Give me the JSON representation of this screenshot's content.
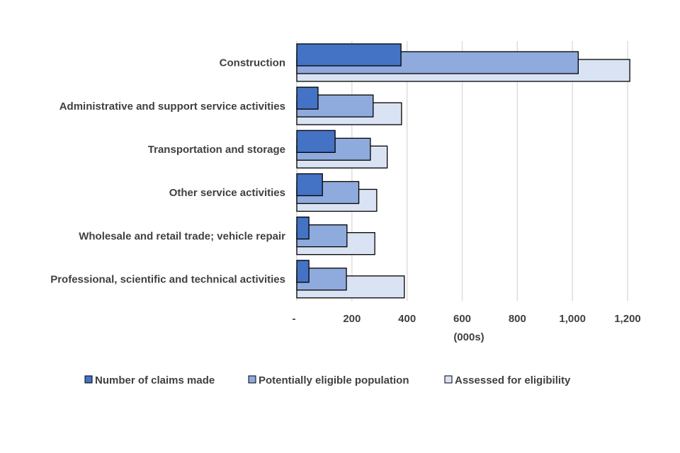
{
  "chart_data": {
    "type": "bar",
    "orientation": "horizontal",
    "title": "",
    "xlabel": "(000s)",
    "ylabel": "",
    "xlim": [
      0,
      1200
    ],
    "x_ticks": [
      0,
      200,
      400,
      600,
      800,
      1000,
      1200
    ],
    "x_tick_labels": [
      "-",
      "200",
      "400",
      "600",
      "800",
      "1,000",
      "1,200"
    ],
    "grid": "vertical",
    "legend_position": "bottom",
    "categories": [
      "Construction",
      "Administrative and support service activities",
      "Transportation and storage",
      "Other service activities",
      "Wholesale and retail trade; vehicle repair",
      "Professional, scientific and technical activities"
    ],
    "series": [
      {
        "name": "Number of claims made",
        "color": "#4472C4",
        "values": [
          378,
          77,
          139,
          93,
          44,
          44
        ]
      },
      {
        "name": "Potentially eligible population",
        "color": "#8FAADC",
        "values": [
          1021,
          277,
          267,
          225,
          182,
          180
        ]
      },
      {
        "name": "Assessed for eligibility",
        "color": "#DAE3F3",
        "values": [
          1208,
          380,
          328,
          290,
          283,
          390
        ]
      }
    ]
  }
}
